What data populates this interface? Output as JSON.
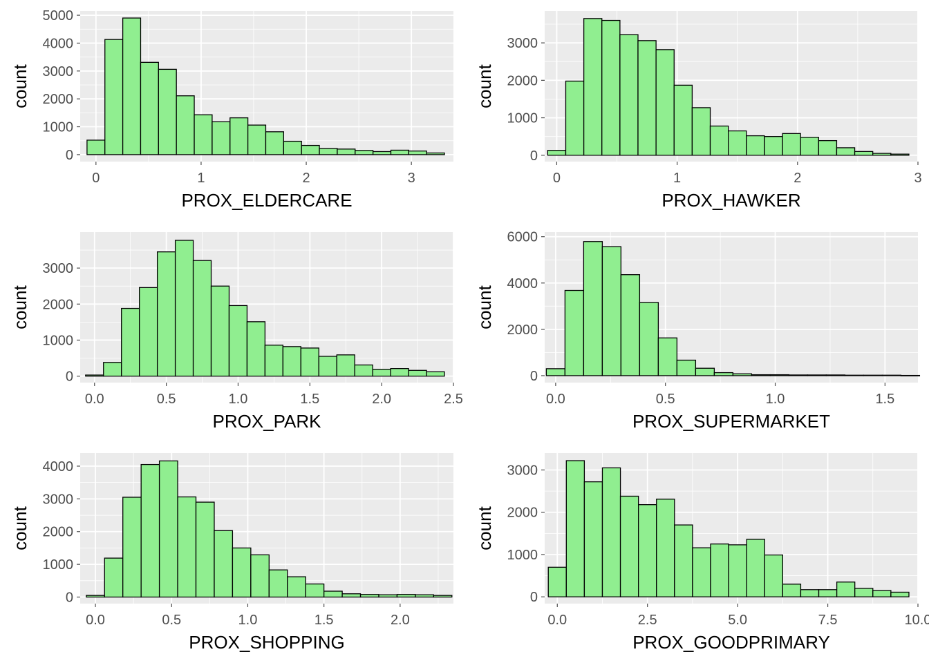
{
  "style": {
    "panel_bg": "#EBEBEB",
    "grid_color": "#FFFFFF",
    "bar_fill": "#90EE90",
    "bar_stroke": "#000000",
    "tick_color": "#4D4D4D"
  },
  "chart_data": [
    {
      "type": "bar",
      "xlabel": "PROX_ELDERCARE",
      "ylabel": "count",
      "xlim": [
        -0.15,
        3.4
      ],
      "ylim": [
        -250,
        5150
      ],
      "xticks": [
        {
          "v": 0,
          "label": "0"
        },
        {
          "v": 1,
          "label": "1"
        },
        {
          "v": 2,
          "label": "2"
        },
        {
          "v": 3,
          "label": "3"
        }
      ],
      "yticks": [
        {
          "v": 0,
          "label": "0"
        },
        {
          "v": 1000,
          "label": "1000"
        },
        {
          "v": 2000,
          "label": "2000"
        },
        {
          "v": 3000,
          "label": "3000"
        },
        {
          "v": 4000,
          "label": "4000"
        },
        {
          "v": 5000,
          "label": "5000"
        }
      ],
      "bins": {
        "start": -0.085,
        "width": 0.17
      },
      "values": [
        520,
        4130,
        4900,
        3310,
        3060,
        2110,
        1430,
        1180,
        1320,
        1060,
        820,
        480,
        330,
        220,
        200,
        150,
        110,
        160,
        130,
        60
      ]
    },
    {
      "type": "bar",
      "xlabel": "PROX_HAWKER",
      "ylabel": "count",
      "xlim": [
        -0.1,
        3.0
      ],
      "ylim": [
        -170,
        3850
      ],
      "xticks": [
        {
          "v": 0,
          "label": "0"
        },
        {
          "v": 1,
          "label": "1"
        },
        {
          "v": 2,
          "label": "2"
        },
        {
          "v": 3,
          "label": "3"
        }
      ],
      "yticks": [
        {
          "v": 0,
          "label": "0"
        },
        {
          "v": 1000,
          "label": "1000"
        },
        {
          "v": 2000,
          "label": "2000"
        },
        {
          "v": 3000,
          "label": "3000"
        }
      ],
      "bins": {
        "start": -0.075,
        "width": 0.15
      },
      "values": [
        130,
        1980,
        3650,
        3600,
        3220,
        3060,
        2820,
        1870,
        1270,
        780,
        650,
        520,
        500,
        580,
        480,
        390,
        200,
        100,
        50,
        30
      ]
    },
    {
      "type": "bar",
      "xlabel": "PROX_PARK",
      "ylabel": "count",
      "xlim": [
        -0.1,
        2.5
      ],
      "ylim": [
        -180,
        4000
      ],
      "xticks": [
        {
          "v": 0.0,
          "label": "0.0"
        },
        {
          "v": 0.5,
          "label": "0.5"
        },
        {
          "v": 1.0,
          "label": "1.0"
        },
        {
          "v": 1.5,
          "label": "1.5"
        },
        {
          "v": 2.0,
          "label": "2.0"
        },
        {
          "v": 2.5,
          "label": "2.5"
        }
      ],
      "yticks": [
        {
          "v": 0,
          "label": "0"
        },
        {
          "v": 1000,
          "label": "1000"
        },
        {
          "v": 2000,
          "label": "2000"
        },
        {
          "v": 3000,
          "label": "3000"
        }
      ],
      "bins": {
        "start": -0.0625,
        "width": 0.125
      },
      "values": [
        30,
        380,
        1880,
        2460,
        3450,
        3770,
        3210,
        2500,
        1960,
        1510,
        860,
        820,
        780,
        550,
        590,
        310,
        190,
        210,
        160,
        120
      ]
    },
    {
      "type": "bar",
      "xlabel": "PROX_SUPERMARKET",
      "ylabel": "count",
      "xlim": [
        -0.05,
        1.65
      ],
      "ylim": [
        -300,
        6200
      ],
      "xticks": [
        {
          "v": 0.0,
          "label": "0.0"
        },
        {
          "v": 0.5,
          "label": "0.5"
        },
        {
          "v": 1.0,
          "label": "1.0"
        },
        {
          "v": 1.5,
          "label": "1.5"
        }
      ],
      "yticks": [
        {
          "v": 0,
          "label": "0"
        },
        {
          "v": 2000,
          "label": "2000"
        },
        {
          "v": 4000,
          "label": "4000"
        },
        {
          "v": 6000,
          "label": "6000"
        }
      ],
      "bins": {
        "start": -0.0425,
        "width": 0.085
      },
      "values": [
        300,
        3680,
        5790,
        5570,
        4360,
        3160,
        1630,
        670,
        320,
        130,
        80,
        40,
        40,
        30,
        30,
        30,
        20,
        20,
        20,
        10
      ]
    },
    {
      "type": "bar",
      "xlabel": "PROX_SHOPPING",
      "ylabel": "count",
      "xlim": [
        -0.1,
        2.35
      ],
      "ylim": [
        -200,
        4400
      ],
      "xticks": [
        {
          "v": 0.0,
          "label": "0.0"
        },
        {
          "v": 0.5,
          "label": "0.5"
        },
        {
          "v": 1.0,
          "label": "1.0"
        },
        {
          "v": 1.5,
          "label": "1.5"
        },
        {
          "v": 2.0,
          "label": "2.0"
        }
      ],
      "yticks": [
        {
          "v": 0,
          "label": "0"
        },
        {
          "v": 1000,
          "label": "1000"
        },
        {
          "v": 2000,
          "label": "2000"
        },
        {
          "v": 3000,
          "label": "3000"
        },
        {
          "v": 4000,
          "label": "4000"
        }
      ],
      "bins": {
        "start": -0.06,
        "width": 0.12
      },
      "values": [
        50,
        1190,
        3050,
        4050,
        4160,
        3060,
        2900,
        2030,
        1500,
        1290,
        830,
        620,
        400,
        180,
        100,
        80,
        70,
        80,
        70,
        50
      ]
    },
    {
      "type": "bar",
      "xlabel": "PROX_GOODPRIMARY",
      "ylabel": "count",
      "xlim": [
        -0.35,
        10.0
      ],
      "ylim": [
        -160,
        3400
      ],
      "xticks": [
        {
          "v": 0.0,
          "label": "0.0"
        },
        {
          "v": 2.5,
          "label": "2.5"
        },
        {
          "v": 5.0,
          "label": "5.0"
        },
        {
          "v": 7.5,
          "label": "7.5"
        },
        {
          "v": 10.0,
          "label": "10.0"
        }
      ],
      "yticks": [
        {
          "v": 0,
          "label": "0"
        },
        {
          "v": 1000,
          "label": "1000"
        },
        {
          "v": 2000,
          "label": "2000"
        },
        {
          "v": 3000,
          "label": "3000"
        }
      ],
      "bins": {
        "start": -0.25,
        "width": 0.5
      },
      "values": [
        700,
        3220,
        2720,
        3050,
        2380,
        2180,
        2310,
        1700,
        1160,
        1250,
        1230,
        1360,
        990,
        300,
        170,
        170,
        350,
        200,
        150,
        110
      ]
    }
  ]
}
